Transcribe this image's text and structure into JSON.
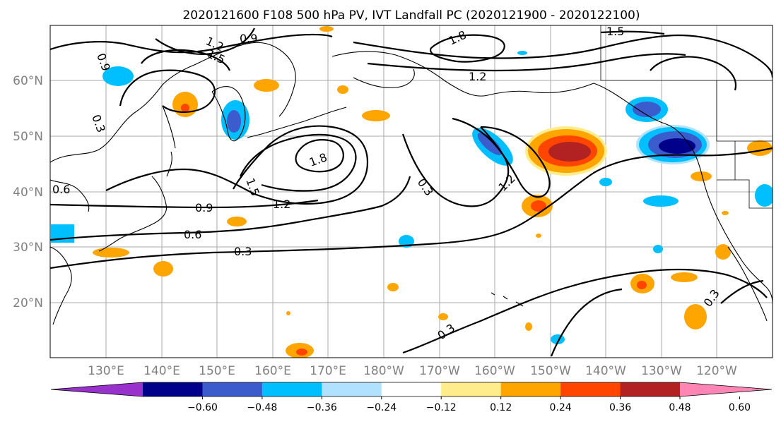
{
  "map": {
    "title": "2020121600 F108 500 hPa PV, IVT Landfall PC (2020121900 - 2020122100)",
    "lat_labels": [
      "60°N",
      "50°N",
      "40°N",
      "30°N",
      "20°N"
    ],
    "lon_labels": [
      "130°E",
      "140°E",
      "150°E",
      "160°E",
      "170°E",
      "180°W",
      "170°W",
      "160°W",
      "150°W",
      "140°W",
      "130°W",
      "120°W"
    ],
    "contour_labels": [
      "0.9",
      "1.2",
      "1.5",
      "1.8",
      "1.5",
      "1.2",
      "0.9",
      "0.6",
      "0.3",
      "0.9",
      "0.6",
      "0.3",
      "1.8",
      "1.5",
      "1.2",
      "0.3",
      "1.2",
      "0.3",
      "0.3"
    ],
    "shading": {
      "colors": [
        "#9932cc",
        "#00008b",
        "#3b5ccd",
        "#00bfff",
        "#b0e2ff",
        "#ffffff",
        "#ffec8b",
        "#ffa500",
        "#ff4500",
        "#b22222",
        "#ff86b4"
      ],
      "extend": "both"
    },
    "colorbar": {
      "tick_labels": [
        "−0.60",
        "−0.48",
        "−0.36",
        "−0.24",
        "−0.12",
        "0.12",
        "0.24",
        "0.36",
        "0.48",
        "0.60"
      ]
    }
  }
}
